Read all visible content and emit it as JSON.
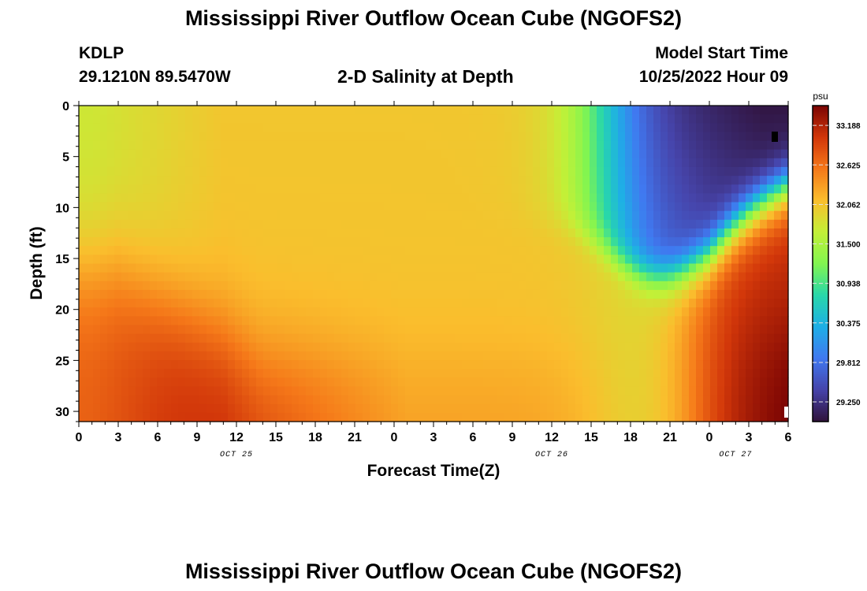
{
  "page": {
    "title": "Mississippi River Outflow Ocean Cube (NGOFS2)",
    "station": "KDLP",
    "coords": "29.1210N  89.5470W",
    "product": "2-D Salinity at Depth",
    "start_label": "Model Start Time",
    "start_value": "10/25/2022 Hour 09",
    "repeat_title": "Mississippi River Outflow Ocean Cube (NGOFS2)"
  },
  "chart_data": {
    "type": "heatmap",
    "title": "2-D Salinity at Depth",
    "xlabel": "Forecast Time(Z)",
    "ylabel": "Depth (ft)",
    "x_range_hours_from_oct25_00z": [
      0,
      54
    ],
    "x_tick_labels": [
      "0",
      "3",
      "6",
      "9",
      "12",
      "15",
      "18",
      "21",
      "0",
      "3",
      "6",
      "9",
      "12",
      "15",
      "18",
      "21",
      "0",
      "3",
      "6"
    ],
    "date_labels": [
      {
        "label": "OCT 25",
        "at_hour": 12
      },
      {
        "label": "OCT 26",
        "at_hour": 36
      },
      {
        "label": "OCT 27",
        "at_hour": 50
      }
    ],
    "y_range": [
      0,
      31
    ],
    "y_inverted": true,
    "y_ticks": [
      "0",
      "5",
      "10",
      "15",
      "20",
      "25",
      "30"
    ],
    "colorbar": {
      "unit": "psu",
      "min": 28.97,
      "max": 33.47,
      "tick_labels": [
        "33.188",
        "32.625",
        "32.062",
        "31.500",
        "30.938",
        "30.375",
        "29.812",
        "29.250"
      ],
      "colormap": "turbo"
    },
    "note": "Field values estimated from color rendering"
  }
}
